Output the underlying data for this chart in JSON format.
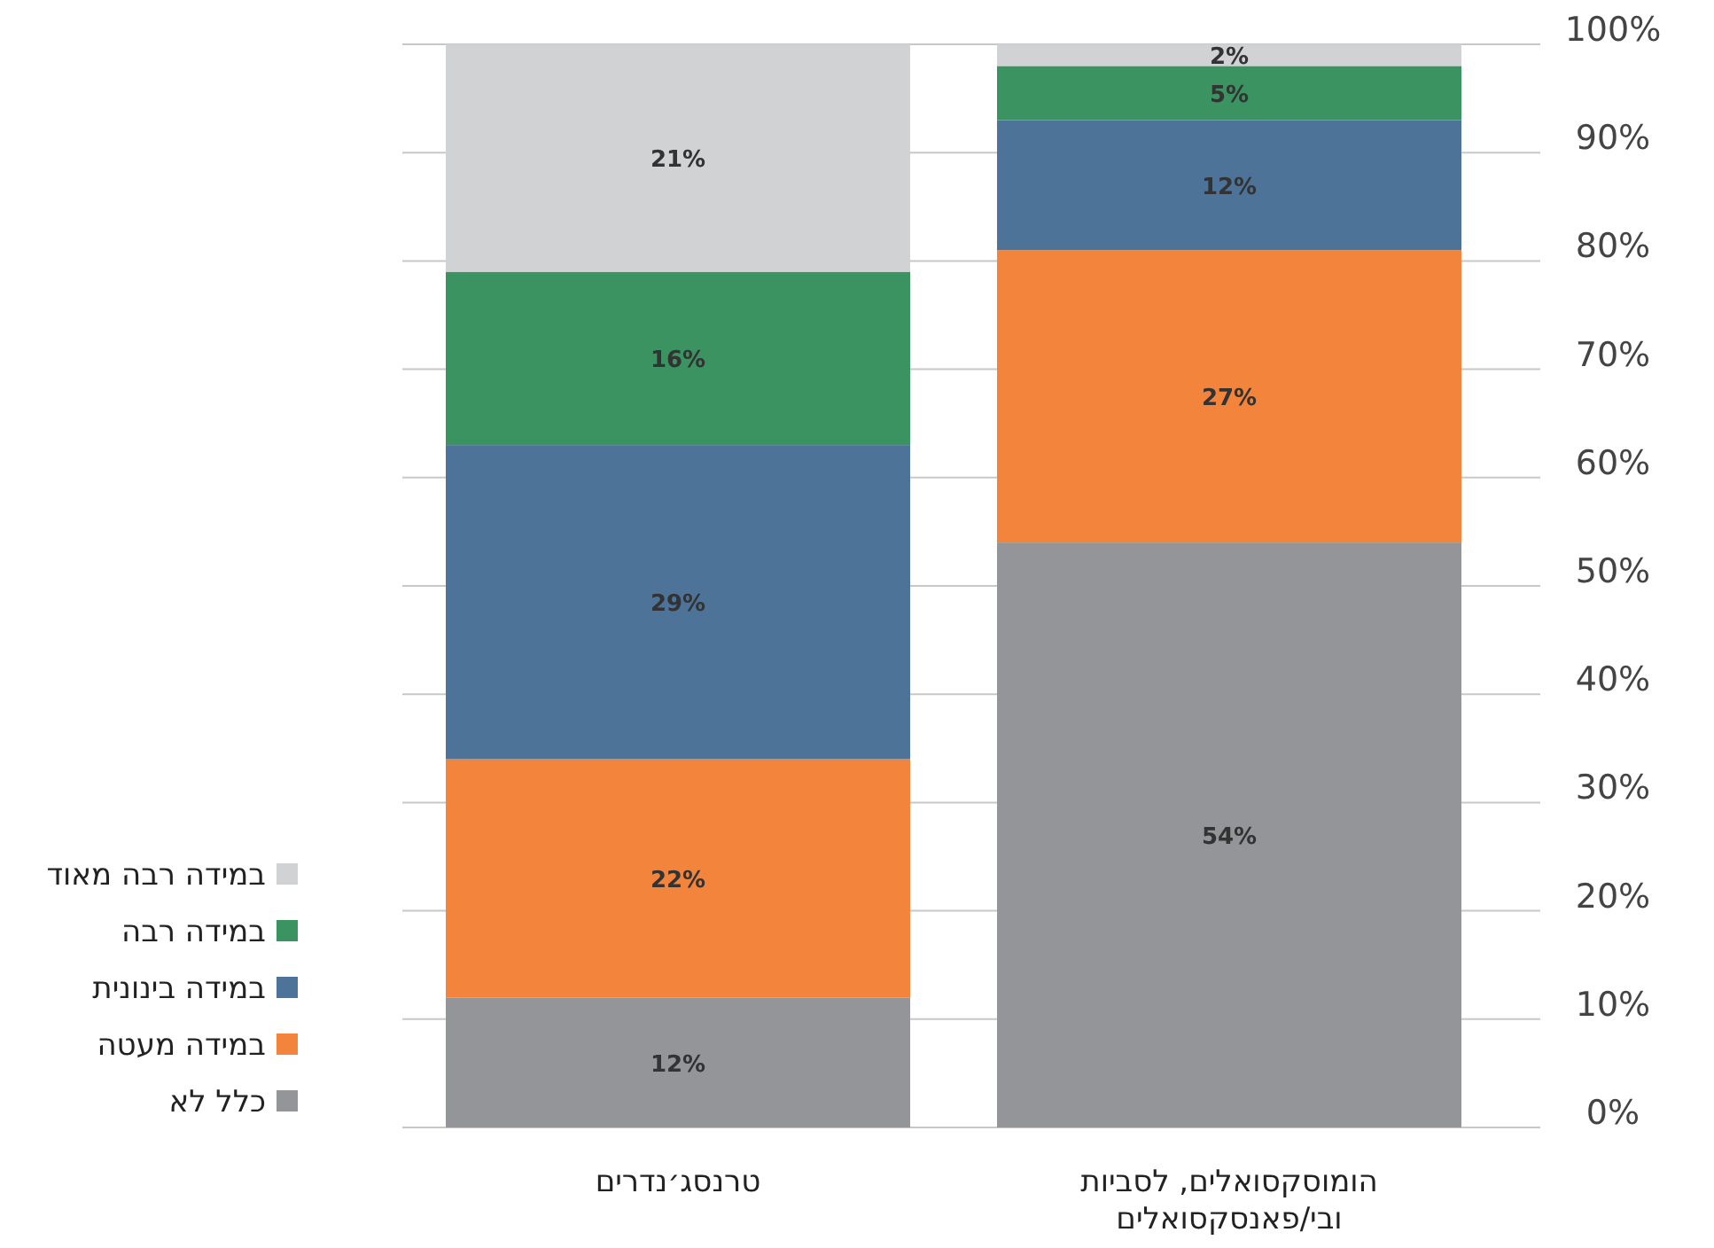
{
  "chart_data": {
    "type": "bar",
    "stacked": true,
    "categories": [
      "טרנסג׳נדרים",
      "הומוסקסואלים, לסביות\nובי/פאנסקסואלים"
    ],
    "series": [
      {
        "name": "כלל לא",
        "color": "#939598",
        "values": [
          12,
          54
        ],
        "value_labels": [
          "12%",
          "54%"
        ]
      },
      {
        "name": "במידה מעטה",
        "color": "#f3843b",
        "values": [
          22,
          27
        ],
        "value_labels": [
          "22%",
          "27%"
        ]
      },
      {
        "name": "במידה בינונית",
        "color": "#4e7399",
        "values": [
          29,
          12
        ],
        "value_labels": [
          "29%",
          "12%"
        ]
      },
      {
        "name": "במידה רבה",
        "color": "#3a9360",
        "values": [
          16,
          5
        ],
        "value_labels": [
          "16%",
          "5%"
        ]
      },
      {
        "name": "במידה רבה מאוד",
        "color": "#d1d2d4",
        "values": [
          21,
          2
        ],
        "value_labels": [
          "21%",
          "2%"
        ]
      }
    ],
    "ylim": [
      0,
      100
    ],
    "yticks": [
      {
        "value": 0,
        "label": "0%"
      },
      {
        "value": 10,
        "label": "10%"
      },
      {
        "value": 20,
        "label": "20%"
      },
      {
        "value": 30,
        "label": "30%"
      },
      {
        "value": 40,
        "label": "40%"
      },
      {
        "value": 50,
        "label": "50%"
      },
      {
        "value": 60,
        "label": "60%"
      },
      {
        "value": 70,
        "label": "70%"
      },
      {
        "value": 80,
        "label": "80%"
      },
      {
        "value": 90,
        "label": "90%"
      },
      {
        "value": 100,
        "label": "100%"
      }
    ],
    "grid": "y",
    "legend": "left"
  }
}
